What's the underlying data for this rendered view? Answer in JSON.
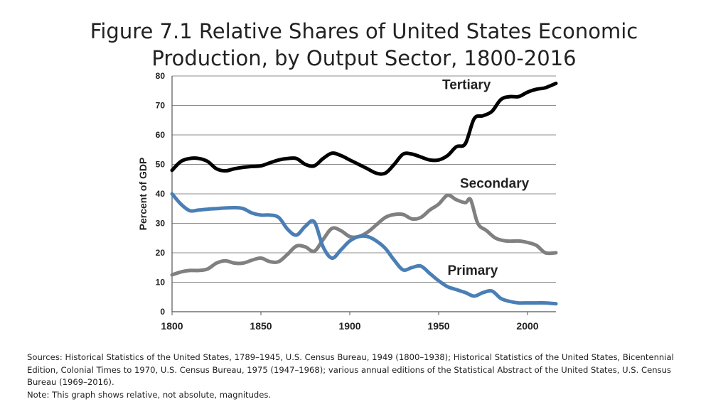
{
  "title": {
    "line1": "Figure 7.1 Relative Shares of United States Economic",
    "line2": "Production, by Output Sector, 1800-2016"
  },
  "footer": {
    "sources": "Sources: Historical Statistics of the United States, 1789–1945, U.S. Census Bureau, 1949 (1800–1938); Historical Statistics of the United States, Bicentennial Edition, Colonial Times to 1970, U.S. Census Bureau, 1975 (1947–1968); various annual editions of the Statistical Abstract of the United States, U.S. Census Bureau (1969–2016).",
    "note": "Note: This graph shows relative, not absolute, magnitudes."
  },
  "chart_data": {
    "type": "line",
    "title": "Figure 7.1 Relative Shares of United States Economic Production, by Output Sector, 1800-2016",
    "xlabel": "",
    "ylabel": "Percent of GDP",
    "xlim": [
      1800,
      2016
    ],
    "ylim": [
      0,
      80
    ],
    "xticks": [
      1800,
      1850,
      1900,
      1950,
      2000
    ],
    "yticks": [
      0,
      10,
      20,
      30,
      40,
      50,
      60,
      70,
      80
    ],
    "grid": true,
    "legend": "inline labels",
    "series": [
      {
        "name": "Tertiary",
        "color": "#000000",
        "points": [
          [
            1800,
            48
          ],
          [
            1805,
            51
          ],
          [
            1810,
            52
          ],
          [
            1815,
            52
          ],
          [
            1820,
            51
          ],
          [
            1825,
            48.5
          ],
          [
            1830,
            47.8
          ],
          [
            1835,
            48.5
          ],
          [
            1840,
            49
          ],
          [
            1845,
            49.3
          ],
          [
            1850,
            49.5
          ],
          [
            1855,
            50.5
          ],
          [
            1860,
            51.5
          ],
          [
            1865,
            52
          ],
          [
            1870,
            52
          ],
          [
            1875,
            50
          ],
          [
            1880,
            49.5
          ],
          [
            1885,
            52
          ],
          [
            1890,
            53.8
          ],
          [
            1895,
            53
          ],
          [
            1900,
            51.5
          ],
          [
            1905,
            50
          ],
          [
            1910,
            48.5
          ],
          [
            1915,
            47
          ],
          [
            1920,
            47
          ],
          [
            1925,
            50
          ],
          [
            1930,
            53.5
          ],
          [
            1935,
            53.5
          ],
          [
            1940,
            52.5
          ],
          [
            1945,
            51.5
          ],
          [
            1950,
            51.5
          ],
          [
            1955,
            53
          ],
          [
            1960,
            56
          ],
          [
            1965,
            57
          ],
          [
            1970,
            65.5
          ],
          [
            1975,
            66.5
          ],
          [
            1980,
            68
          ],
          [
            1985,
            72
          ],
          [
            1990,
            73
          ],
          [
            1995,
            73
          ],
          [
            2000,
            74.5
          ],
          [
            2005,
            75.5
          ],
          [
            2010,
            76
          ],
          [
            2016,
            77.5
          ]
        ]
      },
      {
        "name": "Secondary",
        "color": "#808080",
        "points": [
          [
            1800,
            12.5
          ],
          [
            1805,
            13.5
          ],
          [
            1810,
            14
          ],
          [
            1815,
            14
          ],
          [
            1820,
            14.5
          ],
          [
            1825,
            16.5
          ],
          [
            1830,
            17.3
          ],
          [
            1835,
            16.5
          ],
          [
            1840,
            16.5
          ],
          [
            1845,
            17.5
          ],
          [
            1850,
            18.2
          ],
          [
            1855,
            17
          ],
          [
            1860,
            17
          ],
          [
            1865,
            19.5
          ],
          [
            1870,
            22.3
          ],
          [
            1875,
            22
          ],
          [
            1880,
            20.5
          ],
          [
            1885,
            24.5
          ],
          [
            1890,
            28.3
          ],
          [
            1895,
            27.5
          ],
          [
            1900,
            25.5
          ],
          [
            1905,
            25.5
          ],
          [
            1910,
            27
          ],
          [
            1915,
            29.5
          ],
          [
            1920,
            32
          ],
          [
            1925,
            33
          ],
          [
            1930,
            33
          ],
          [
            1935,
            31.5
          ],
          [
            1940,
            32
          ],
          [
            1945,
            34.5
          ],
          [
            1950,
            36.5
          ],
          [
            1955,
            39.5
          ],
          [
            1960,
            38
          ],
          [
            1965,
            37
          ],
          [
            1968,
            38
          ],
          [
            1972,
            30
          ],
          [
            1977,
            27.5
          ],
          [
            1982,
            25
          ],
          [
            1988,
            24
          ],
          [
            1995,
            24
          ],
          [
            2000,
            23.5
          ],
          [
            2005,
            22.5
          ],
          [
            2010,
            20
          ],
          [
            2016,
            20
          ]
        ]
      },
      {
        "name": "Primary",
        "color": "#4a7fb5",
        "points": [
          [
            1800,
            40
          ],
          [
            1805,
            36.5
          ],
          [
            1810,
            34.3
          ],
          [
            1815,
            34.5
          ],
          [
            1820,
            34.8
          ],
          [
            1825,
            35
          ],
          [
            1830,
            35.2
          ],
          [
            1835,
            35.3
          ],
          [
            1840,
            35
          ],
          [
            1845,
            33.5
          ],
          [
            1850,
            32.8
          ],
          [
            1855,
            32.8
          ],
          [
            1860,
            32
          ],
          [
            1865,
            28
          ],
          [
            1870,
            26
          ],
          [
            1875,
            29
          ],
          [
            1880,
            30.5
          ],
          [
            1885,
            22
          ],
          [
            1890,
            18.2
          ],
          [
            1895,
            21
          ],
          [
            1900,
            24
          ],
          [
            1905,
            25.5
          ],
          [
            1910,
            25.5
          ],
          [
            1915,
            24
          ],
          [
            1920,
            21.5
          ],
          [
            1925,
            17.5
          ],
          [
            1930,
            14.2
          ],
          [
            1935,
            15
          ],
          [
            1940,
            15.5
          ],
          [
            1945,
            13
          ],
          [
            1950,
            10.5
          ],
          [
            1955,
            8.5
          ],
          [
            1960,
            7.5
          ],
          [
            1965,
            6.5
          ],
          [
            1970,
            5.3
          ],
          [
            1975,
            6.5
          ],
          [
            1980,
            7
          ],
          [
            1985,
            4.5
          ],
          [
            1990,
            3.5
          ],
          [
            1995,
            3
          ],
          [
            2000,
            3
          ],
          [
            2005,
            3
          ],
          [
            2010,
            3
          ],
          [
            2016,
            2.7
          ]
        ]
      }
    ]
  }
}
